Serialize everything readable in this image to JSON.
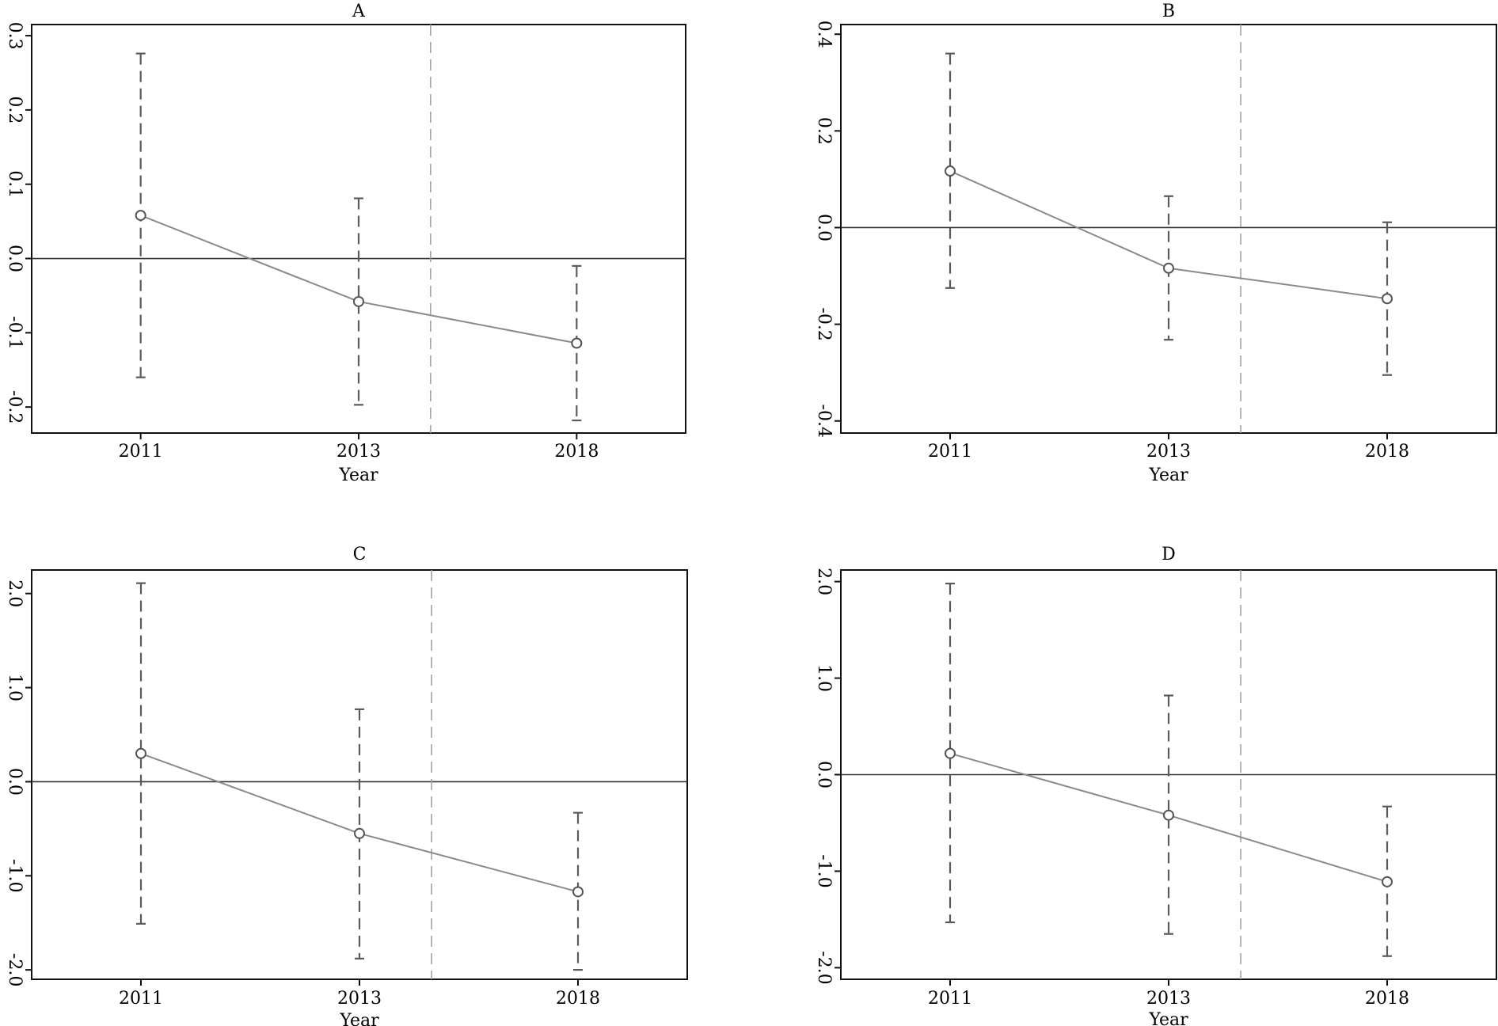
{
  "chart_data": [
    {
      "type": "line",
      "title": "A",
      "xlabel": "Year",
      "ylabel": "",
      "categories": [
        "2011",
        "2013",
        "2018"
      ],
      "values": [
        0.058,
        -0.058,
        -0.114
      ],
      "ci_lower": [
        -0.16,
        -0.197,
        -0.218
      ],
      "ci_upper": [
        0.276,
        0.081,
        -0.01
      ],
      "yticks": [
        "0.3",
        "0.2",
        "0.1",
        "0.0",
        "-0.1",
        "-0.2"
      ],
      "ytick_values": [
        0.3,
        0.2,
        0.1,
        0.0,
        -0.1,
        -0.2
      ],
      "ylim": [
        -0.235,
        0.315
      ],
      "reference_y": 0,
      "vertical_ref_x": 1.33,
      "show_xlabel": true,
      "grid": false
    },
    {
      "type": "line",
      "title": "B",
      "xlabel": "Year",
      "ylabel": "",
      "categories": [
        "2011",
        "2013",
        "2018"
      ],
      "values": [
        0.117,
        -0.084,
        -0.147
      ],
      "ci_lower": [
        -0.125,
        -0.232,
        -0.305
      ],
      "ci_upper": [
        0.36,
        0.065,
        0.011
      ],
      "yticks": [
        "0.4",
        "0.2",
        "0.0",
        "-0.2",
        "-0.4"
      ],
      "ytick_values": [
        0.4,
        0.2,
        0.0,
        -0.2,
        -0.4
      ],
      "ylim": [
        -0.425,
        0.42
      ],
      "reference_y": 0,
      "vertical_ref_x": 1.33,
      "show_xlabel": true,
      "grid": false
    },
    {
      "type": "line",
      "title": "C",
      "xlabel": "Year",
      "ylabel": "",
      "categories": [
        "2011",
        "2013",
        "2018"
      ],
      "values": [
        0.3,
        -0.55,
        -1.17
      ],
      "ci_lower": [
        -1.51,
        -1.88,
        -2.0
      ],
      "ci_upper": [
        2.11,
        0.77,
        -0.33
      ],
      "yticks": [
        "2.0",
        "1.0",
        "0.0",
        "-1.0",
        "-2.0"
      ],
      "ytick_values": [
        2.0,
        1.0,
        0.0,
        -1.0,
        -2.0
      ],
      "ylim": [
        -2.1,
        2.25
      ],
      "reference_y": 0,
      "vertical_ref_x": 1.33,
      "show_xlabel": true,
      "grid": false
    },
    {
      "type": "line",
      "title": "D",
      "xlabel": "Year",
      "ylabel": "",
      "categories": [
        "2011",
        "2013",
        "2018"
      ],
      "values": [
        0.22,
        -0.42,
        -1.11
      ],
      "ci_lower": [
        -1.53,
        -1.65,
        -1.88
      ],
      "ci_upper": [
        1.98,
        0.82,
        -0.33
      ],
      "yticks": [
        "2.0",
        "1.0",
        "0.0",
        "-1.0",
        "-2.0"
      ],
      "ytick_values": [
        2.0,
        1.0,
        0.0,
        -1.0,
        -2.0
      ],
      "ylim": [
        -2.12,
        2.12
      ],
      "reference_y": 0,
      "vertical_ref_x": 1.33,
      "show_xlabel": true,
      "grid": false
    }
  ],
  "colors": {
    "estimate_line": "#8a8a8a",
    "ci_bars": "#5a5a5a",
    "zero_line": "#333333",
    "vertical_reference": "#9aa5a5",
    "frame": "#111111"
  }
}
